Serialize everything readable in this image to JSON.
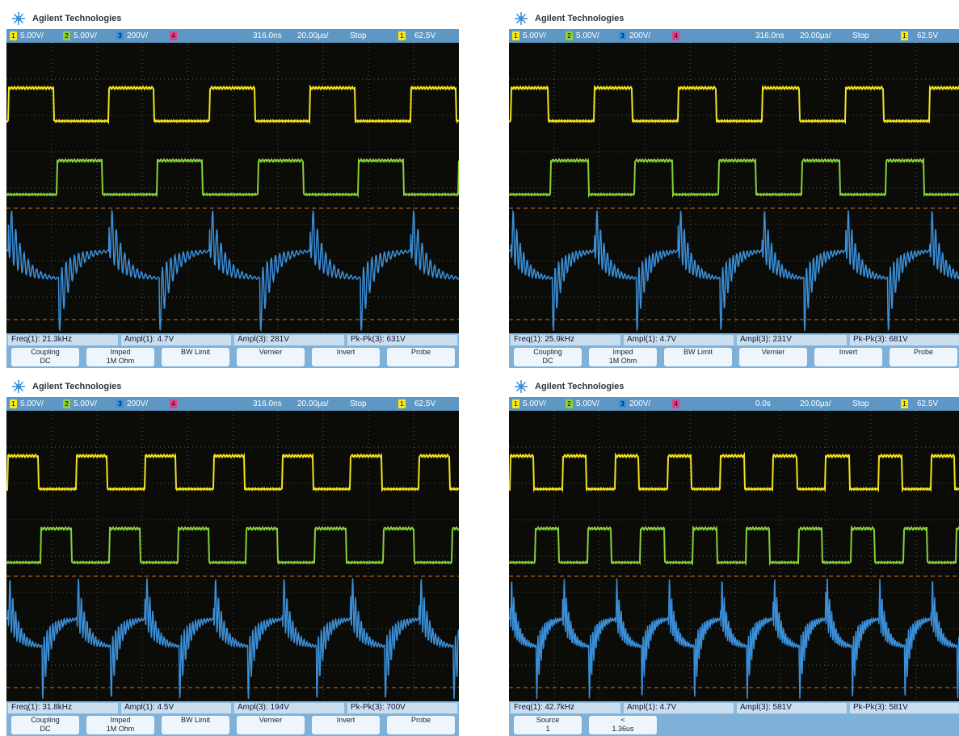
{
  "panels": [
    {
      "brand": "Agilent Technologies",
      "channels": [
        {
          "num": "1",
          "scale": "5.00V/"
        },
        {
          "num": "2",
          "scale": "5.00V/"
        },
        {
          "num": "3",
          "scale": "200V/"
        },
        {
          "num": "4"
        }
      ],
      "delay": "316.0ns",
      "timebase": "20.00µs/",
      "run": "Stop",
      "trigger_channel": "1",
      "trigger_level": "62.5V",
      "measurements": [
        "Freq(1): 21.3kHz",
        "Ampl(1): 4.7V",
        "Ampl(3): 281V",
        "Pk-Pk(3): 631V"
      ],
      "softkeys": [
        {
          "label": "Coupling",
          "value": "DC"
        },
        {
          "label": "Imped",
          "value": "1M Ohm"
        },
        {
          "label": "BW Limit"
        },
        {
          "label": "Vernier"
        },
        {
          "label": "Invert"
        },
        {
          "label": "Probe"
        }
      ]
    },
    {
      "brand": "Agilent Technologies",
      "channels": [
        {
          "num": "1",
          "scale": "5.00V/"
        },
        {
          "num": "2",
          "scale": "5.00V/"
        },
        {
          "num": "3",
          "scale": "200V/"
        },
        {
          "num": "4"
        }
      ],
      "delay": "316.0ns",
      "timebase": "20.00µs/",
      "run": "Stop",
      "trigger_channel": "1",
      "trigger_level": "62.5V",
      "measurements": [
        "Freq(1): 25.9kHz",
        "Ampl(1): 4.7V",
        "Ampl(3): 231V",
        "Pk-Pk(3): 681V"
      ],
      "softkeys": [
        {
          "label": "Coupling",
          "value": "DC"
        },
        {
          "label": "Imped",
          "value": "1M Ohm"
        },
        {
          "label": "BW Limit"
        },
        {
          "label": "Vernier"
        },
        {
          "label": "Invert"
        },
        {
          "label": "Probe"
        }
      ]
    },
    {
      "brand": "Agilent Technologies",
      "channels": [
        {
          "num": "1",
          "scale": "5.00V/"
        },
        {
          "num": "2",
          "scale": "5.00V/"
        },
        {
          "num": "3",
          "scale": "200V/"
        },
        {
          "num": "4"
        }
      ],
      "delay": "316.0ns",
      "timebase": "20.00µs/",
      "run": "Stop",
      "trigger_channel": "1",
      "trigger_level": "62.5V",
      "measurements": [
        "Freq(1): 31.8kHz",
        "Ampl(1): 4.5V",
        "Ampl(3): 194V",
        "Pk-Pk(3): 700V"
      ],
      "softkeys": [
        {
          "label": "Coupling",
          "value": "DC"
        },
        {
          "label": "Imped",
          "value": "1M Ohm"
        },
        {
          "label": "BW Limit"
        },
        {
          "label": "Vernier"
        },
        {
          "label": "Invert"
        },
        {
          "label": "Probe"
        }
      ]
    },
    {
      "brand": "Agilent Technologies",
      "channels": [
        {
          "num": "1",
          "scale": "5.00V/"
        },
        {
          "num": "2",
          "scale": "5.00V/"
        },
        {
          "num": "3",
          "scale": "200V/"
        },
        {
          "num": "4"
        }
      ],
      "delay": "0.0s",
      "timebase": "20.00µs/",
      "run": "Stop",
      "trigger_channel": "1",
      "trigger_level": "62.5V",
      "measurements": [
        "Freq(1): 42.7kHz",
        "Ampl(1): 4.7V",
        "Ampl(3): 581V",
        "Pk-Pk(3): 581V"
      ],
      "softkeys": [
        {
          "label": "Source",
          "value": "1"
        },
        {
          "label": "<",
          "value": "1.36us"
        }
      ]
    }
  ]
}
